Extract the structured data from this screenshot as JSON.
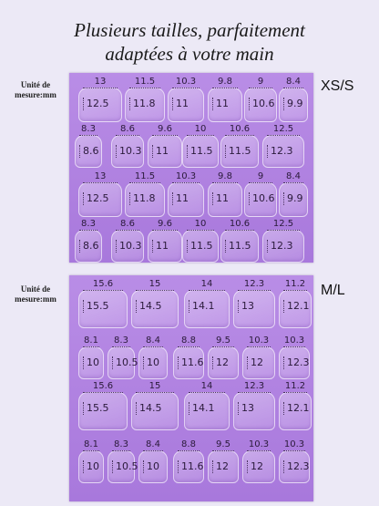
{
  "title": {
    "line1": "Plusieurs tailles, parfaitement",
    "line2": "adaptées à votre main"
  },
  "unit_label": {
    "line1": "Unité de",
    "line2": "mesure:mm"
  },
  "sizes": {
    "xs_s": "XS/S",
    "m_l": "M/L"
  },
  "xs_s_rows": [
    [
      [
        "13",
        "12.5"
      ],
      [
        "11.5",
        "11.8"
      ],
      [
        "10.3",
        "11"
      ],
      [
        "9.8",
        "11"
      ],
      [
        "9",
        "10.6"
      ],
      [
        "8.4",
        "9.9"
      ]
    ],
    [
      [
        "8.3",
        "8.6"
      ],
      [
        "8.6",
        "10.3"
      ],
      [
        "9.6",
        "11"
      ],
      [
        "10",
        "11.5"
      ],
      [
        "10.6",
        "11.5"
      ],
      [
        "12.5",
        "12.3"
      ]
    ],
    [
      [
        "13",
        "12.5"
      ],
      [
        "11.5",
        "11.8"
      ],
      [
        "10.3",
        "11"
      ],
      [
        "9.8",
        "11"
      ],
      [
        "9",
        "10.6"
      ],
      [
        "8.4",
        "9.9"
      ]
    ],
    [
      [
        "8.3",
        "8.6"
      ],
      [
        "8.6",
        "10.3"
      ],
      [
        "9.6",
        "11"
      ],
      [
        "10",
        "11.5"
      ],
      [
        "10.6",
        "11.5"
      ],
      [
        "12.5",
        "12.3"
      ]
    ]
  ],
  "m_l_rows": [
    [
      [
        "15.6",
        "15.5"
      ],
      [
        "15",
        "14.5"
      ],
      [
        "14",
        "14.1"
      ],
      [
        "12.3",
        "13"
      ],
      [
        "11.2",
        "12.1"
      ]
    ],
    [
      [
        "8.1",
        "10"
      ],
      [
        "8.3",
        "10.5"
      ],
      [
        "8.4",
        "10"
      ],
      [
        "8.8",
        "11.6"
      ],
      [
        "9.5",
        "12"
      ],
      [
        "10.3",
        "12"
      ],
      [
        "10.3",
        "12.3"
      ]
    ],
    [
      [
        "15.6",
        "15.5"
      ],
      [
        "15",
        "14.5"
      ],
      [
        "14",
        "14.1"
      ],
      [
        "12.3",
        "13"
      ],
      [
        "11.2",
        "12.1"
      ]
    ],
    [
      [
        "8.1",
        "10"
      ],
      [
        "8.3",
        "10.5"
      ],
      [
        "8.4",
        "10"
      ],
      [
        "8.8",
        "11.6"
      ],
      [
        "9.5",
        "12"
      ],
      [
        "10.3",
        "12"
      ],
      [
        "10.3",
        "12.3"
      ]
    ]
  ]
}
